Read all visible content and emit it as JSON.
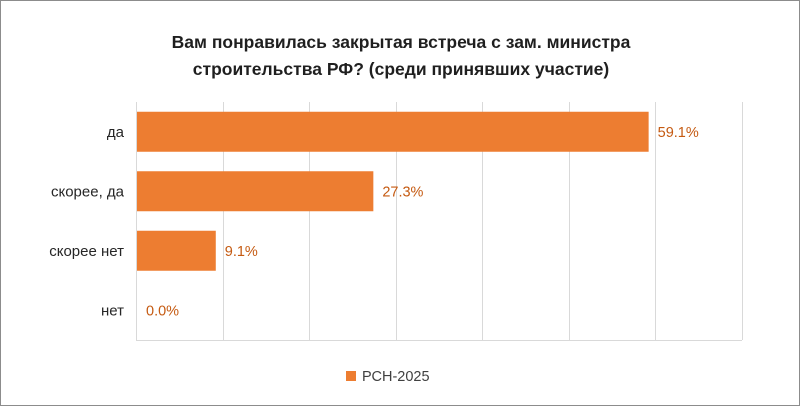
{
  "title_line1": "Вам понравилась закрытая встреча с зам. министра",
  "title_line2": "строительства РФ? (среди принявших участие)",
  "colors": {
    "bar": "#ed7d31",
    "label": "#c55a11",
    "grid": "#d9d9d9"
  },
  "chart_data": {
    "type": "bar",
    "orientation": "horizontal",
    "title": "Вам понравилась закрытая встреча с зам. министра строительства РФ? (среди принявших участие)",
    "categories": [
      "да",
      "скорее, да",
      "скорее  нет",
      "нет"
    ],
    "series": [
      {
        "name": "РСН-2025",
        "values": [
          59.1,
          27.3,
          9.1,
          0.0
        ]
      }
    ],
    "data_labels": [
      "59.1%",
      "27.3%",
      "9.1%",
      "0.0%"
    ],
    "xlim": [
      0,
      70
    ],
    "x_axis_labels_visible": false,
    "grid": true,
    "legend": "bottom"
  }
}
